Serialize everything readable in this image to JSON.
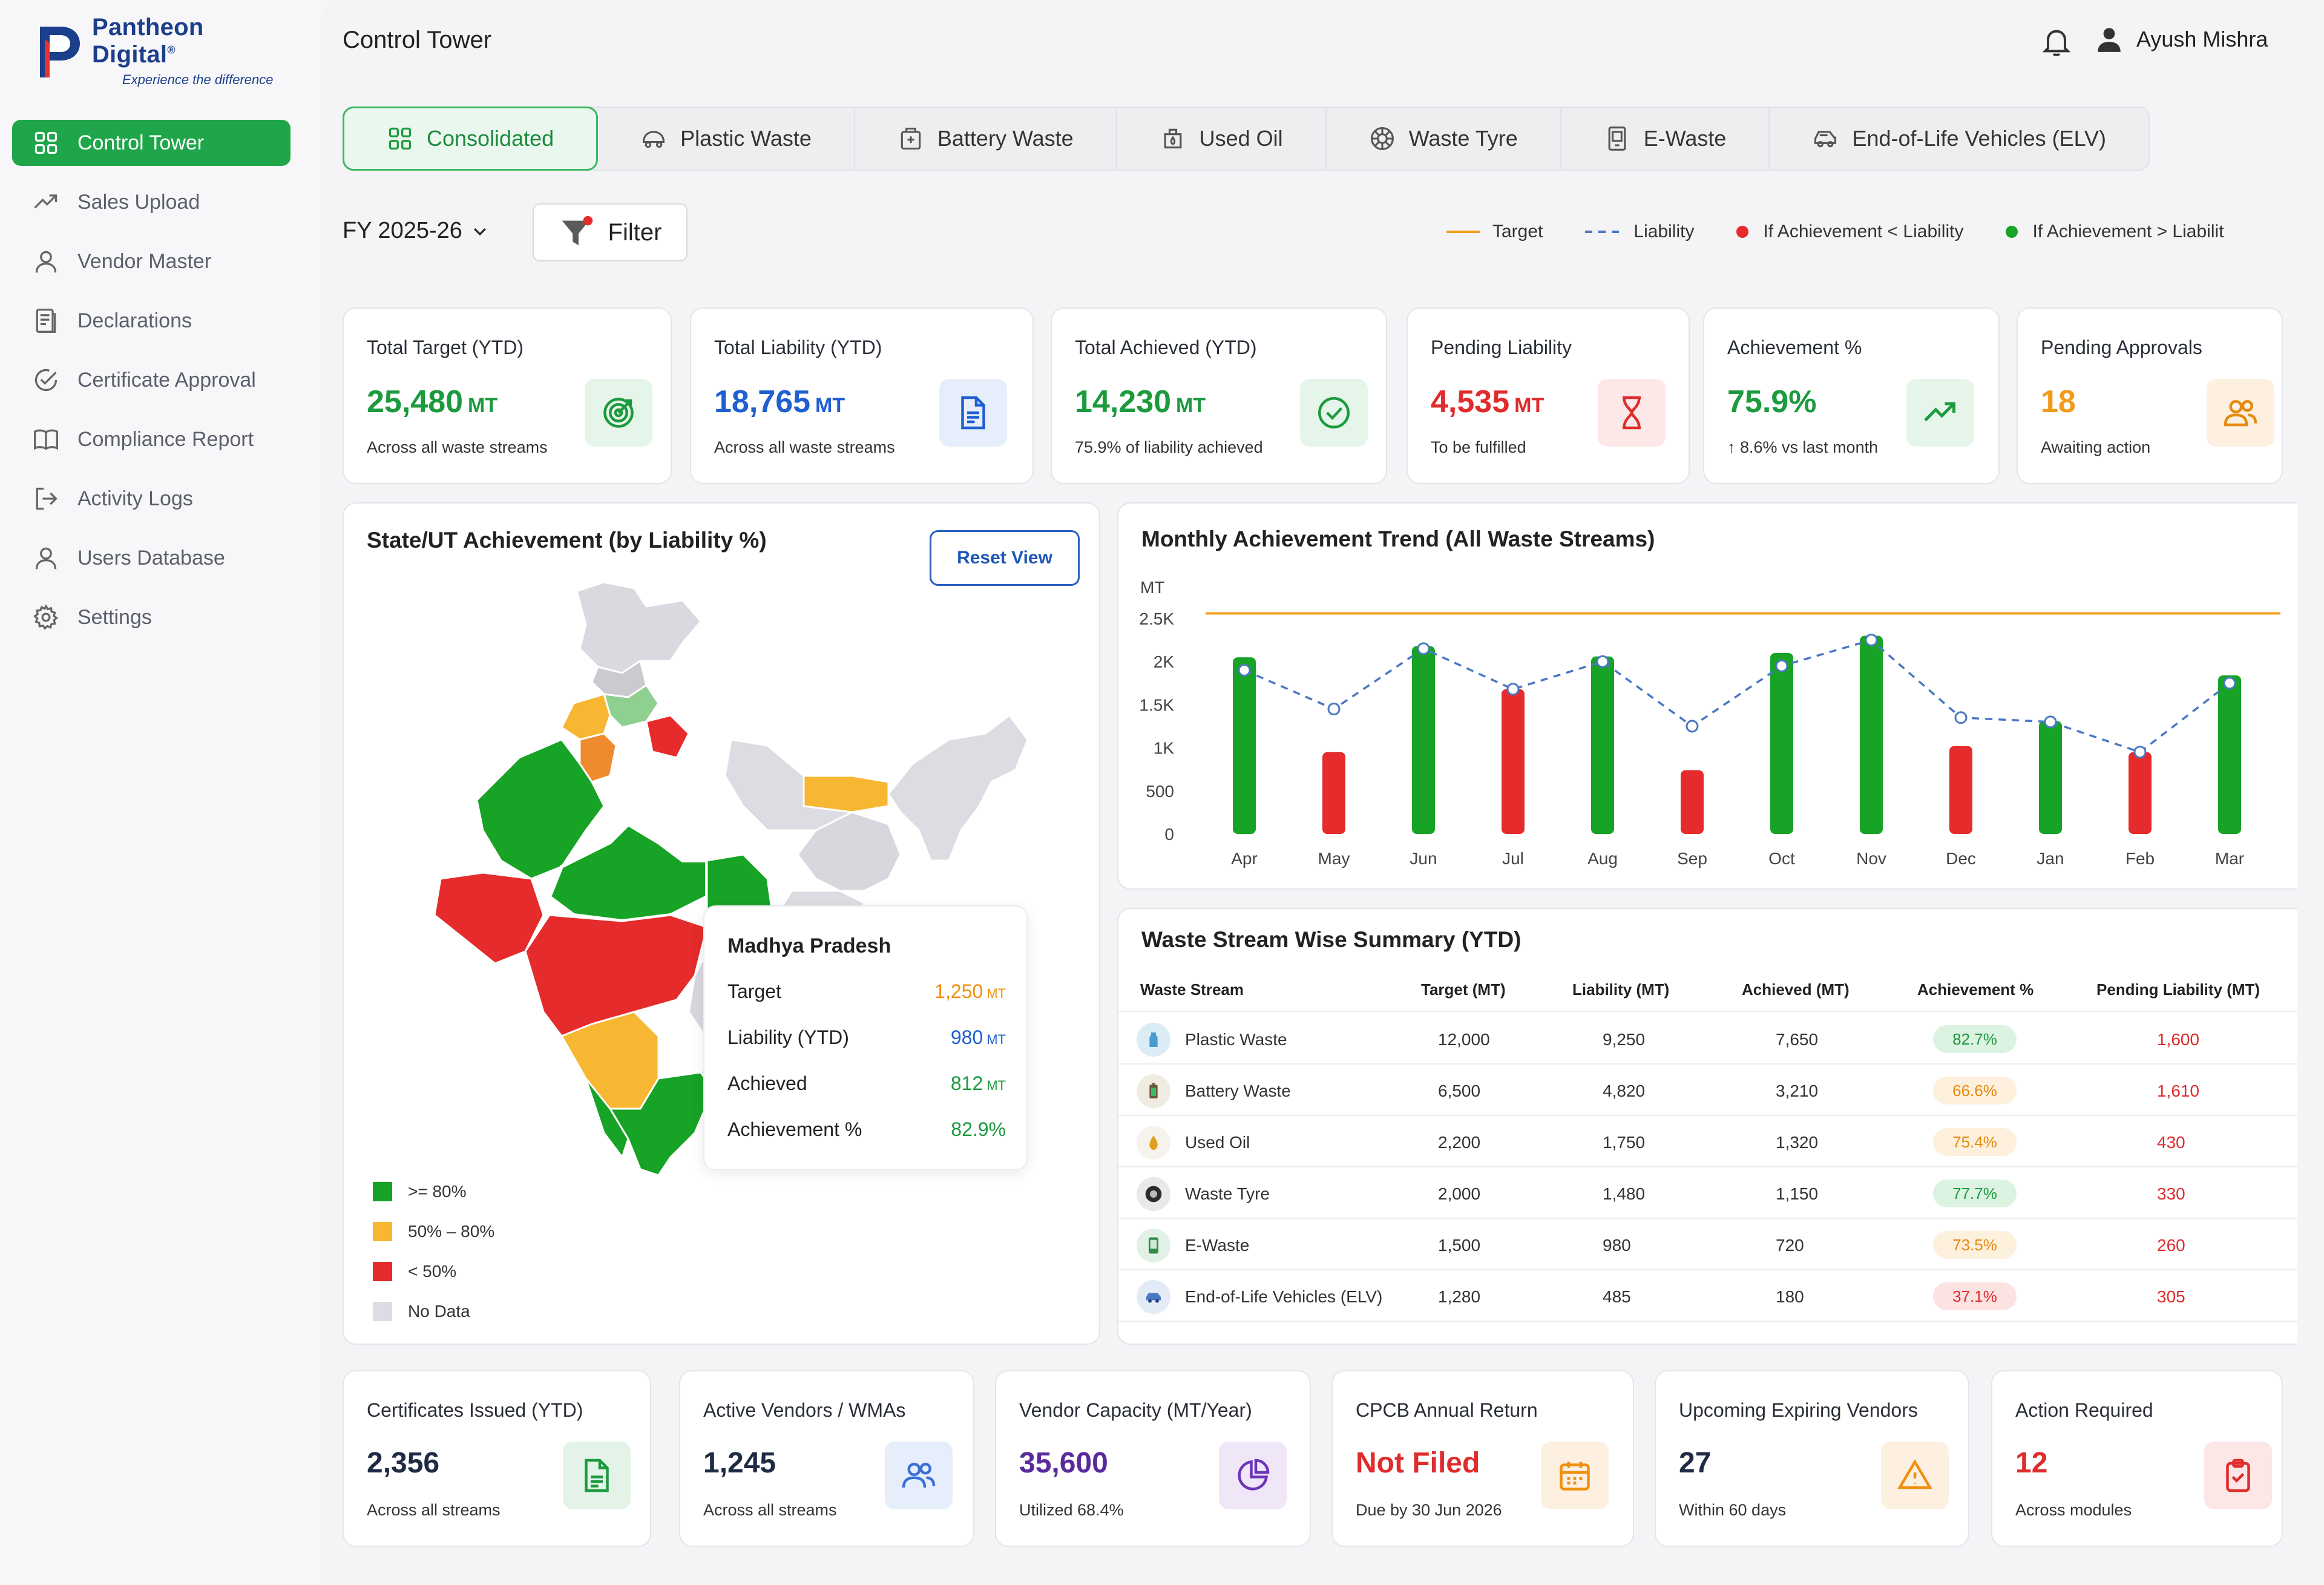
{
  "brand": {
    "name": "Pantheon Digital",
    "reg": "®",
    "tagline": "Experience the difference",
    "color": "#1c3f8c"
  },
  "sidebar": {
    "items": [
      {
        "label": "Control Tower",
        "icon": "grid-icon",
        "active": true
      },
      {
        "label": "Sales Upload",
        "icon": "trend-up-icon"
      },
      {
        "label": "Vendor Master",
        "icon": "user-icon"
      },
      {
        "label": "Declarations",
        "icon": "document-list-icon"
      },
      {
        "label": "Certificate Approval",
        "icon": "check-circle-icon"
      },
      {
        "label": "Compliance Report",
        "icon": "book-icon"
      },
      {
        "label": "Activity Logs",
        "icon": "logout-icon"
      },
      {
        "label": "Users Database",
        "icon": "user-icon"
      },
      {
        "label": "Settings",
        "icon": "gear-icon"
      }
    ]
  },
  "header": {
    "title": "Control Tower",
    "user_name": "Ayush Mishra"
  },
  "tabs": [
    {
      "label": "Consolidated",
      "icon": "grid-icon",
      "active": true
    },
    {
      "label": "Plastic Waste",
      "icon": "plastic-icon"
    },
    {
      "label": "Battery Waste",
      "icon": "battery-icon"
    },
    {
      "label": "Used Oil",
      "icon": "oil-icon"
    },
    {
      "label": "Waste Tyre",
      "icon": "tyre-icon"
    },
    {
      "label": "E-Waste",
      "icon": "device-icon"
    },
    {
      "label": "End-of-Life Vehicles (ELV)",
      "icon": "car-icon"
    }
  ],
  "controls": {
    "fiscal_year": "FY 2025-26",
    "filter_label": "Filter"
  },
  "legend": {
    "target": "Target",
    "liability": "Liability",
    "below": "If Achievement < Liability",
    "above": "If Achievement > Liabilit"
  },
  "kpis": [
    {
      "label": "Total Target (YTD)",
      "value": "25,480",
      "unit": "MT",
      "sub": "Across all waste streams",
      "color": "#1c9a3e",
      "bg": "#e6f5ea",
      "icon": "target-icon"
    },
    {
      "label": "Total Liability (YTD)",
      "value": "18,765",
      "unit": "MT",
      "sub": "Across all waste streams",
      "color": "#1f5fd0",
      "bg": "#e6eefb",
      "icon": "document-icon"
    },
    {
      "label": "Total Achieved (YTD)",
      "value": "14,230",
      "unit": "MT",
      "sub": "75.9% of liability achieved",
      "color": "#1c9a3e",
      "bg": "#e6f5ea",
      "icon": "check-circle-icon"
    },
    {
      "label": "Pending Liability",
      "value": "4,535",
      "unit": "MT",
      "sub": "To be fulfilled",
      "color": "#e02c2c",
      "bg": "#fde8e8",
      "icon": "hourglass-icon"
    },
    {
      "label": "Achievement %",
      "value": "75.9%",
      "unit": "",
      "sub": "↑ 8.6% vs last month",
      "color": "#1c9a3e",
      "bg": "#e6f5ea",
      "icon": "trend-up-icon"
    },
    {
      "label": "Pending Approvals",
      "value": "18",
      "unit": "",
      "sub": "Awaiting action",
      "color": "#f29a1a",
      "bg": "#fdf0e0",
      "icon": "users-icon"
    }
  ],
  "map_panel": {
    "title": "State/UT Achievement (by Liability %)",
    "reset_label": "Reset View",
    "tooltip": {
      "state": "Madhya Pradesh",
      "rows": [
        {
          "label": "Target",
          "value": "1,250",
          "unit": "MT",
          "color": "#f0900f"
        },
        {
          "label": "Liability (YTD)",
          "value": "980",
          "unit": "MT",
          "color": "#1f5fd0"
        },
        {
          "label": "Achieved",
          "value": "812",
          "unit": "MT",
          "color": "#1c9a3e"
        },
        {
          "label": "Achievement %",
          "value": "82.9%",
          "unit": "",
          "color": "#1c9a3e"
        }
      ]
    },
    "legend": [
      {
        "label": ">= 80%",
        "color": "#17a325"
      },
      {
        "label": "50% – 80%",
        "color": "#f7b733"
      },
      {
        "label": "< 50%",
        "color": "#e52b2b"
      },
      {
        "label": "No Data",
        "color": "#dcdde2"
      }
    ]
  },
  "chart_data": {
    "type": "bar",
    "title": "Monthly Achievement Trend (All Waste Streams)",
    "ylabel": "MT",
    "ylim": [
      0,
      2500
    ],
    "yticks": [
      "0",
      "500",
      "1K",
      "1.5K",
      "2K",
      "2.5K"
    ],
    "categories": [
      "Apr",
      "May",
      "Jun",
      "Jul",
      "Aug",
      "Sep",
      "Oct",
      "Nov",
      "Dec",
      "Jan",
      "Feb",
      "Mar"
    ],
    "series": [
      {
        "name": "Achievement",
        "values": [
          2050,
          950,
          2180,
          1680,
          2060,
          740,
          2100,
          2300,
          1020,
          1310,
          950,
          1840
        ],
        "status": [
          "above",
          "below",
          "above",
          "below",
          "above",
          "below",
          "above",
          "above",
          "below",
          "above",
          "below",
          "above"
        ]
      },
      {
        "name": "Liability",
        "values": [
          1900,
          1450,
          2150,
          1680,
          2000,
          1250,
          1950,
          2250,
          1350,
          1300,
          950,
          1750
        ]
      },
      {
        "name": "Target",
        "values": [
          2560,
          2560,
          2560,
          2560,
          2560,
          2560,
          2560,
          2560,
          2560,
          2560,
          2560,
          2560
        ]
      }
    ],
    "colors": {
      "above": "#17a325",
      "below": "#e52b2b",
      "target": "#f0a020",
      "liability": "#4a78c2"
    }
  },
  "summary": {
    "title": "Waste Stream Wise Summary (YTD)",
    "columns": [
      "Waste Stream",
      "Target (MT)",
      "Liability (MT)",
      "Achieved (MT)",
      "Achievement %",
      "Pending Liability (MT)"
    ],
    "rows": [
      {
        "stream": "Plastic Waste",
        "target": "12,000",
        "liability": "9,250",
        "achieved": "7,650",
        "pct": "82.7%",
        "pending": "1,600",
        "pct_color": "#1c9a3e",
        "pct_bg": "#dcf3e2",
        "icon": "plastic-icon",
        "icon_bg": "#dcecf7"
      },
      {
        "stream": "Battery Waste",
        "target": "6,500",
        "liability": "4,820",
        "achieved": "3,210",
        "pct": "66.6%",
        "pending": "1,610",
        "pct_color": "#e68a10",
        "pct_bg": "#fdf0dc",
        "icon": "battery-icon",
        "icon_bg": "#f1ece2"
      },
      {
        "stream": "Used Oil",
        "target": "2,200",
        "liability": "1,750",
        "achieved": "1,320",
        "pct": "75.4%",
        "pending": "430",
        "pct_color": "#e68a10",
        "pct_bg": "#fdf0dc",
        "icon": "oil-icon",
        "icon_bg": "#f6f3ec"
      },
      {
        "stream": "Waste Tyre",
        "target": "2,000",
        "liability": "1,480",
        "achieved": "1,150",
        "pct": "77.7%",
        "pending": "330",
        "pct_color": "#1c9a3e",
        "pct_bg": "#dcf3e2",
        "icon": "tyre-icon",
        "icon_bg": "#e9e9ec"
      },
      {
        "stream": "E-Waste",
        "target": "1,500",
        "liability": "980",
        "achieved": "720",
        "pct": "73.5%",
        "pending": "260",
        "pct_color": "#e68a10",
        "pct_bg": "#fdf0dc",
        "icon": "device-icon",
        "icon_bg": "#e2f1e5"
      },
      {
        "stream": "End-of-Life Vehicles (ELV)",
        "target": "1,280",
        "liability": "485",
        "achieved": "180",
        "pct": "37.1%",
        "pending": "305",
        "pct_color": "#e02c2c",
        "pct_bg": "#fde2e2",
        "icon": "car-icon",
        "icon_bg": "#e3ebf7"
      }
    ],
    "pending_color": "#e02c2c"
  },
  "bottom_kpis": [
    {
      "label": "Certificates Issued (YTD)",
      "value": "2,356",
      "sub": "Across all streams",
      "color": "#1f2a44",
      "bg": "#e4f3e8",
      "icon_color": "#1c9a3e",
      "icon": "certificate-icon"
    },
    {
      "label": "Active Vendors / WMAs",
      "value": "1,245",
      "sub": "Across all streams",
      "color": "#1f2a44",
      "bg": "#e6eefb",
      "icon_color": "#3c6fd6",
      "icon": "users-icon"
    },
    {
      "label": "Vendor Capacity (MT/Year)",
      "value": "35,600",
      "sub": "Utilized 68.4%",
      "color": "#5a2a9c",
      "bg": "#efe6f8",
      "icon_color": "#6b35b8",
      "icon": "pie-icon"
    },
    {
      "label": "CPCB Annual Return",
      "value": "Not Filed",
      "sub": "Due by 30 Jun 2026",
      "color": "#e02c2c",
      "bg": "#fdf0e0",
      "icon_color": "#f0900f",
      "icon": "calendar-icon"
    },
    {
      "label": "Upcoming Expiring Vendors",
      "value": "27",
      "sub": "Within 60 days",
      "color": "#1f2a44",
      "bg": "#fdf0e0",
      "icon_color": "#f0900f",
      "icon": "warning-icon"
    },
    {
      "label": "Action Required",
      "value": "12",
      "sub": "Across modules",
      "color": "#e02c2c",
      "bg": "#fde6e6",
      "icon_color": "#e02c2c",
      "icon": "clipboard-icon"
    }
  ]
}
